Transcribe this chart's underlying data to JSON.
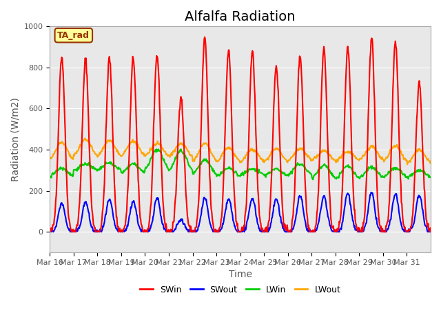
{
  "title": "Alfalfa Radiation",
  "ylabel": "Radiation (W/m2)",
  "xlabel": "Time",
  "ylim": [
    -100,
    1000
  ],
  "plot_bg_color": "#e8e8e8",
  "label_box_text": "TA_rad",
  "label_box_facecolor": "#ffff99",
  "label_box_edgecolor": "#993300",
  "series": {
    "SWin": {
      "color": "#ff0000",
      "lw": 1.5
    },
    "SWout": {
      "color": "#0000ff",
      "lw": 1.5
    },
    "LWin": {
      "color": "#00cc00",
      "lw": 1.5
    },
    "LWout": {
      "color": "#ffa500",
      "lw": 1.5
    }
  },
  "xtick_labels": [
    "Mar 16",
    "Mar 17",
    "Mar 18",
    "Mar 19",
    "Mar 20",
    "Mar 21",
    "Mar 22",
    "Mar 23",
    "Mar 24",
    "Mar 25",
    "Mar 26",
    "Mar 27",
    "Mar 28",
    "Mar 29",
    "Mar 30",
    "Mar 31"
  ],
  "n_days": 16,
  "pts_per_day": 48,
  "SWin_peaks": [
    855,
    840,
    845,
    845,
    860,
    660,
    940,
    880,
    880,
    810,
    860,
    890,
    895,
    945,
    925,
    730
  ],
  "SWout_peaks": [
    140,
    145,
    155,
    150,
    165,
    60,
    165,
    160,
    165,
    160,
    175,
    175,
    190,
    190,
    185,
    180
  ],
  "LWin_base": [
    265,
    295,
    295,
    280,
    290,
    285,
    270,
    265,
    275,
    270,
    270,
    250,
    250,
    255,
    260,
    260
  ],
  "LWin_peak": [
    310,
    330,
    335,
    330,
    400,
    395,
    350,
    310,
    305,
    305,
    330,
    325,
    320,
    315,
    310,
    300
  ],
  "LWout_base": [
    335,
    360,
    355,
    360,
    360,
    355,
    330,
    330,
    330,
    330,
    340,
    340,
    340,
    340,
    330,
    325
  ],
  "LWout_peak": [
    435,
    450,
    445,
    440,
    430,
    430,
    430,
    410,
    400,
    405,
    405,
    395,
    390,
    415,
    420,
    400
  ],
  "grid_color": "#ffffff",
  "tick_color": "#555555",
  "title_fontsize": 14,
  "axis_fontsize": 10,
  "tick_fontsize": 8
}
